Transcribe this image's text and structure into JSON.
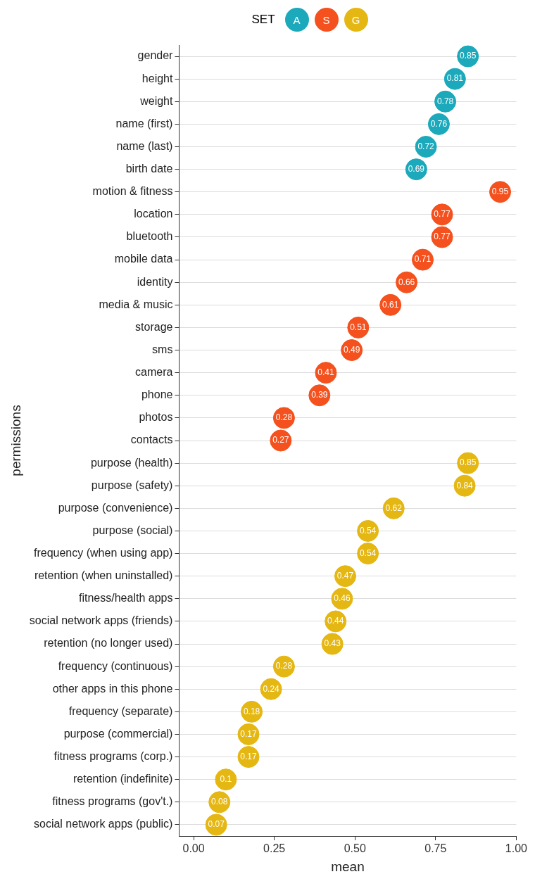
{
  "chart_data": {
    "type": "scatter",
    "orientation": "horizontal",
    "xlabel": "mean",
    "ylabel": "permissions",
    "legend_title": "SET",
    "legend": "top",
    "grid": "y",
    "marker": "circle",
    "data_labels": true,
    "categories": [
      "gender",
      "height",
      "weight",
      "name (first)",
      "name (last)",
      "birth date",
      "motion & fitness",
      "location",
      "bluetooth",
      "mobile data",
      "identity",
      "media & music",
      "storage",
      "sms",
      "camera",
      "phone",
      "photos",
      "contacts",
      "purpose (health)",
      "purpose (safety)",
      "purpose (convenience)",
      "purpose (social)",
      "frequency (when using app)",
      "retention (when uninstalled)",
      "fitness/health apps",
      "social network apps (friends)",
      "retention (no longer used)",
      "frequency (continuous)",
      "other apps in this phone",
      "frequency (separate)",
      "purpose (commercial)",
      "fitness programs (corp.)",
      "retention (indefinite)",
      "fitness programs (gov't.)",
      "social network apps (public)"
    ],
    "xlim": [
      -0.045,
      1.0
    ],
    "xticks": [
      {
        "value": 0,
        "label": "0.00"
      },
      {
        "value": 0.25,
        "label": "0.25"
      },
      {
        "value": 0.5,
        "label": "0.50"
      },
      {
        "value": 0.75,
        "label": "0.75"
      },
      {
        "value": 1,
        "label": "1.00"
      }
    ],
    "series": [
      {
        "name": "A",
        "color": "#1ba9bb",
        "values": [
          0.85,
          0.81,
          0.78,
          0.76,
          0.72,
          0.69,
          null,
          null,
          null,
          null,
          null,
          null,
          null,
          null,
          null,
          null,
          null,
          null,
          null,
          null,
          null,
          null,
          null,
          null,
          null,
          null,
          null,
          null,
          null,
          null,
          null,
          null,
          null,
          null,
          null
        ]
      },
      {
        "name": "S",
        "color": "#f4511e",
        "values": [
          null,
          null,
          null,
          null,
          null,
          null,
          0.95,
          0.77,
          0.77,
          0.71,
          0.66,
          0.61,
          0.51,
          0.49,
          0.41,
          0.39,
          0.28,
          0.27,
          null,
          null,
          null,
          null,
          null,
          null,
          null,
          null,
          null,
          null,
          null,
          null,
          null,
          null,
          null,
          null,
          null
        ]
      },
      {
        "name": "G",
        "color": "#e5b712",
        "values": [
          null,
          null,
          null,
          null,
          null,
          null,
          null,
          null,
          null,
          null,
          null,
          null,
          null,
          null,
          null,
          null,
          null,
          null,
          0.85,
          0.84,
          0.62,
          0.54,
          0.54,
          0.47,
          0.46,
          0.44,
          0.43,
          0.28,
          0.24,
          0.18,
          0.17,
          0.17,
          0.1,
          0.08,
          0.07
        ]
      }
    ]
  }
}
